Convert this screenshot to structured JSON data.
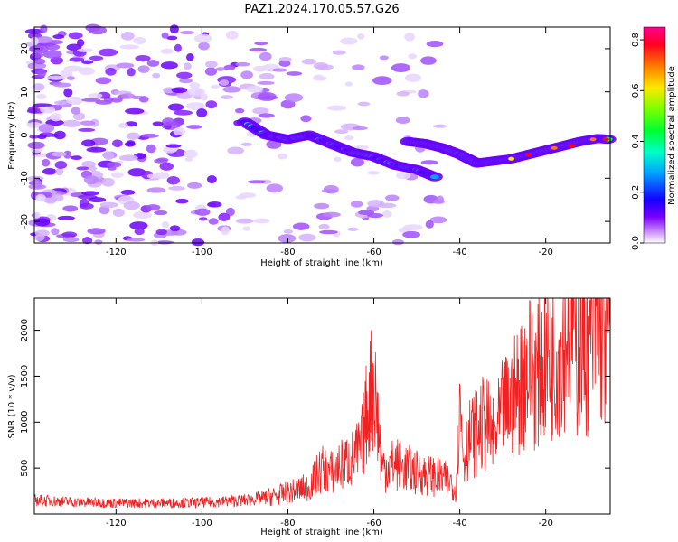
{
  "title": "PAZ1.2024.170.05.57.G26",
  "chart_data": [
    {
      "type": "heatmap",
      "title": "PAZ1.2024.170.05.57.G26",
      "xlabel": "Height of straight line (km)",
      "ylabel": "Frequency (Hz)",
      "xlim": [
        -139,
        -5
      ],
      "ylim": [
        -25,
        25
      ],
      "x_ticks": [
        -120,
        -100,
        -80,
        -60,
        -40,
        -20
      ],
      "y_ticks": [
        -20,
        -10,
        0,
        10,
        20
      ],
      "colorbar": {
        "label": "Normalized spectral amplitude",
        "range": [
          0,
          0.85
        ],
        "ticks": [
          0.0,
          0.2,
          0.4,
          0.6,
          0.8
        ],
        "colormap": "gist_rainbow (white-purple-blue-cyan-green-yellow-red)"
      },
      "ridge": {
        "description": "main signal ridge (approx. peak frequency by height)",
        "x": [
          -90,
          -85,
          -80,
          -75,
          -70,
          -65,
          -60,
          -55,
          -50,
          -45
        ],
        "y": [
          3,
          0,
          -1,
          0,
          -2,
          -4,
          -5,
          -7,
          -8,
          -10
        ]
      },
      "ridge2": {
        "x": [
          -52,
          -48,
          -44,
          -40,
          -36,
          -32,
          -28,
          -24,
          -20,
          -16,
          -12,
          -8,
          -5
        ],
        "y": [
          -1.5,
          -2,
          -3,
          -4.5,
          -6.5,
          -6,
          -5.5,
          -4.5,
          -3.5,
          -2.5,
          -1.5,
          -0.8,
          -1
        ]
      }
    },
    {
      "type": "line",
      "xlabel": "Height of straight line (km)",
      "ylabel": "SNR (10 * v/v)",
      "xlim": [
        -139,
        -5
      ],
      "ylim": [
        0,
        2350
      ],
      "x_ticks": [
        -120,
        -100,
        -80,
        -60,
        -40,
        -20
      ],
      "y_ticks": [
        500,
        1000,
        1500,
        2000
      ],
      "series": [
        {
          "color": "#ee2222",
          "x": [
            -139,
            -130,
            -120,
            -110,
            -100,
            -90,
            -85,
            -80,
            -75,
            -72,
            -70,
            -67,
            -65,
            -63,
            -61,
            -60,
            -58,
            -55,
            -50,
            -45,
            -42,
            -41,
            -40,
            -39,
            -38,
            -36,
            -34,
            -32,
            -30,
            -28,
            -26,
            -24,
            -22,
            -20,
            -18,
            -16,
            -15,
            -14,
            -13,
            -12,
            -10,
            -8,
            -6,
            -5
          ],
          "y": [
            150,
            130,
            120,
            120,
            125,
            150,
            180,
            230,
            300,
            500,
            450,
            550,
            600,
            700,
            1300,
            1450,
            500,
            550,
            450,
            400,
            350,
            250,
            1200,
            600,
            800,
            900,
            1000,
            800,
            1100,
            1200,
            1400,
            1600,
            1500,
            1700,
            1700,
            1900,
            2100,
            2300,
            1700,
            1900,
            1800,
            2100,
            1900,
            2100
          ]
        }
      ]
    }
  ]
}
